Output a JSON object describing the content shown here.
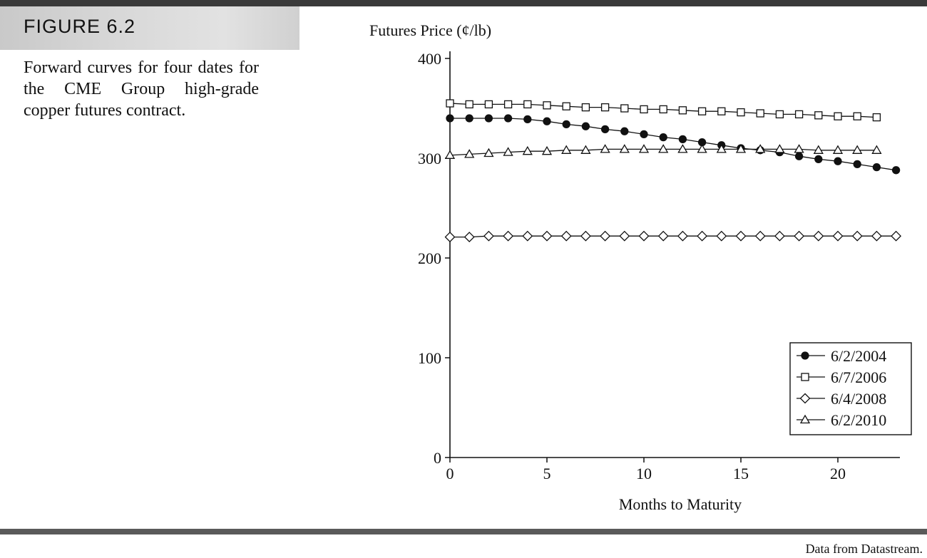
{
  "figure": {
    "label": "FIGURE 6.2",
    "caption": "Forward curves for four dates for the CME Group high-grade copper futures contract.",
    "source": "Data from Datastream."
  },
  "chart_data": {
    "type": "line",
    "title": "",
    "xlabel": "Months to Maturity",
    "ylabel": "Futures Price (¢/lb)",
    "xlim": [
      0,
      23.5
    ],
    "ylim": [
      0,
      400
    ],
    "xticks": [
      0,
      5,
      10,
      15,
      20
    ],
    "yticks": [
      0,
      100,
      200,
      300,
      400
    ],
    "grid": false,
    "legend_position": "bottom-right",
    "series": [
      {
        "name": "6/2/2004",
        "marker": "filled-circle",
        "x": [
          0,
          1,
          2,
          3,
          4,
          5,
          6,
          7,
          8,
          9,
          10,
          11,
          12,
          13,
          14,
          15,
          16,
          17,
          18,
          19,
          20,
          21,
          22,
          23
        ],
        "values": [
          340,
          340,
          340,
          340,
          339,
          337,
          334,
          332,
          329,
          327,
          324,
          321,
          319,
          316,
          313,
          310,
          308,
          306,
          302,
          299,
          297,
          294,
          291,
          288
        ]
      },
      {
        "name": "6/7/2006",
        "marker": "open-square",
        "x": [
          0,
          1,
          2,
          3,
          4,
          5,
          6,
          7,
          8,
          9,
          10,
          11,
          12,
          13,
          14,
          15,
          16,
          17,
          18,
          19,
          20,
          21,
          22
        ],
        "values": [
          355,
          354,
          354,
          354,
          354,
          353,
          352,
          351,
          351,
          350,
          349,
          349,
          348,
          347,
          347,
          346,
          345,
          344,
          344,
          343,
          342,
          342,
          341
        ]
      },
      {
        "name": "6/4/2008",
        "marker": "open-diamond",
        "x": [
          0,
          1,
          2,
          3,
          4,
          5,
          6,
          7,
          8,
          9,
          10,
          11,
          12,
          13,
          14,
          15,
          16,
          17,
          18,
          19,
          20,
          21,
          22,
          23
        ],
        "values": [
          221,
          221,
          222,
          222,
          222,
          222,
          222,
          222,
          222,
          222,
          222,
          222,
          222,
          222,
          222,
          222,
          222,
          222,
          222,
          222,
          222,
          222,
          222,
          222
        ]
      },
      {
        "name": "6/2/2010",
        "marker": "open-triangle",
        "x": [
          0,
          1,
          2,
          3,
          4,
          5,
          6,
          7,
          8,
          9,
          10,
          11,
          12,
          13,
          14,
          15,
          16,
          17,
          18,
          19,
          20,
          21,
          22
        ],
        "values": [
          303,
          304,
          305,
          306,
          307,
          307,
          308,
          308,
          309,
          309,
          309,
          309,
          309,
          309,
          309,
          309,
          309,
          309,
          309,
          308,
          308,
          308,
          308
        ]
      }
    ]
  }
}
